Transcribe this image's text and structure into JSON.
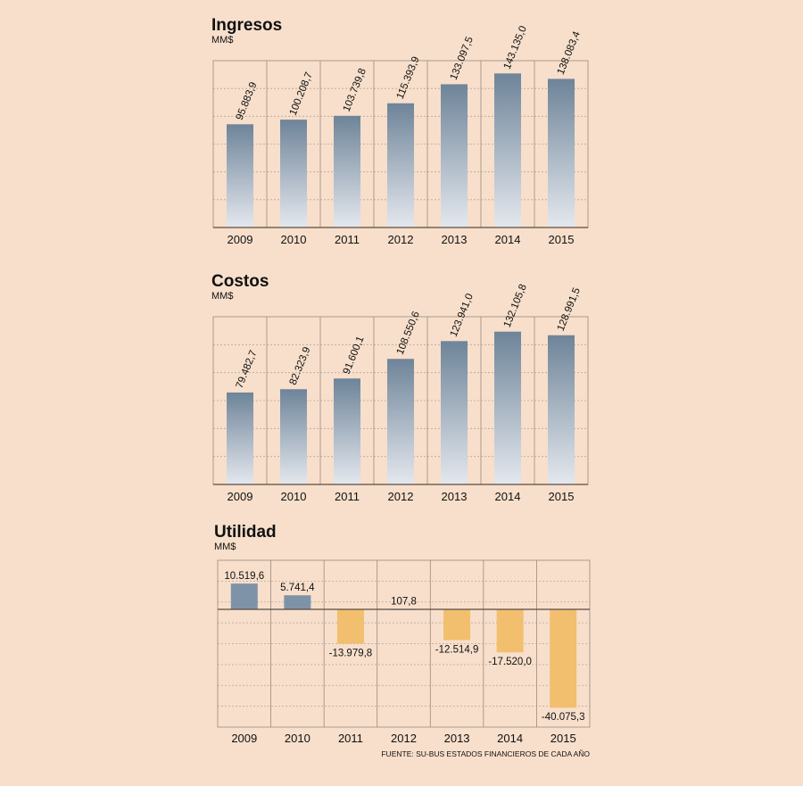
{
  "colors": {
    "background": "#f7dfcb",
    "bar_top": "#6e8499",
    "bar_bottom": "#e4e8ee",
    "positive": "#7f93a8",
    "negative": "#f1bf6e"
  },
  "source": "FUENTE: SU-BUS ESTADOS FINANCIEROS DE CADA AÑO",
  "chart_data": [
    {
      "type": "bar",
      "title": "Ingresos",
      "unit": "MM$",
      "categories": [
        "2009",
        "2010",
        "2011",
        "2012",
        "2013",
        "2014",
        "2015"
      ],
      "values": [
        95883.9,
        100208.7,
        103739.8,
        115393.9,
        133097.5,
        143135.0,
        138083.4
      ],
      "value_labels": [
        "95.883,9",
        "100.208,7",
        "103.739,8",
        "115.393,9",
        "133.097,5",
        "143.135,0",
        "138.083,4"
      ],
      "ylim": [
        0,
        155000
      ],
      "grid": true
    },
    {
      "type": "bar",
      "title": "Costos",
      "unit": "MM$",
      "categories": [
        "2009",
        "2010",
        "2011",
        "2012",
        "2013",
        "2014",
        "2015"
      ],
      "values": [
        79482.7,
        82323.9,
        91600.1,
        108550.6,
        123941.0,
        132105.8,
        128991.5
      ],
      "value_labels": [
        "79.482,7",
        "82.323,9",
        "91.600,1",
        "108.550,6",
        "123.941,0",
        "132.105,8",
        "128.991,5"
      ],
      "ylim": [
        0,
        145000
      ],
      "grid": true
    },
    {
      "type": "bar",
      "title": "Utilidad",
      "unit": "MM$",
      "categories": [
        "2009",
        "2010",
        "2011",
        "2012",
        "2013",
        "2014",
        "2015"
      ],
      "values": [
        10519.6,
        5741.4,
        -13979.8,
        107.8,
        -12514.9,
        -17520.0,
        -40075.3
      ],
      "value_labels": [
        "10.519,6",
        "5.741,4",
        "-13.979,8",
        "107,8",
        "-12.514,9",
        "-17.520,0",
        "-40.075,3"
      ],
      "ylim": [
        -48000,
        20000
      ],
      "grid": true
    }
  ]
}
